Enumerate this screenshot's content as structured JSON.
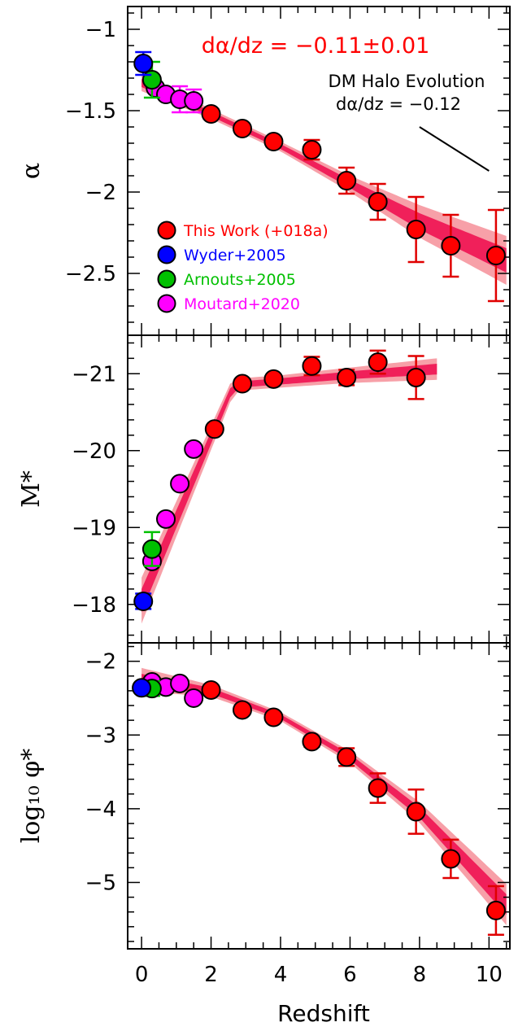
{
  "chart_data": {
    "type": "scatter",
    "xlabel": "Redshift",
    "xlim": [
      -0.4,
      10.6
    ],
    "x_ticks": [
      0,
      2,
      4,
      6,
      8,
      10
    ],
    "legend": {
      "position": "lower-left of top panel",
      "entries": [
        {
          "name": "This Work (+018a)",
          "color": "#ff0000"
        },
        {
          "name": "Wyder+2005",
          "color": "#0000ff"
        },
        {
          "name": "Arnouts+2005",
          "color": "#00c000"
        },
        {
          "name": "Moutard+2020",
          "color": "#ff00ff"
        }
      ]
    },
    "panels": [
      {
        "id": "alpha",
        "ylabel": "α",
        "ylim": [
          -2.88,
          -0.86
        ],
        "y_ticks": [
          -1,
          -1.5,
          -2,
          -2.5
        ],
        "y_tick_labels": [
          "−1",
          "−1.5",
          "−2",
          "−2.5"
        ],
        "annotation_fit": "dα/dz = −0.11±0.01",
        "annotation_halo_title": "DM Halo Evolution",
        "annotation_halo_slope": "dα/dz = −0.12",
        "halo_line": {
          "x": [
            8.0,
            10.0
          ],
          "y": [
            -1.6,
            -1.87
          ]
        },
        "band": {
          "x": [
            0.0,
            2.0,
            4.0,
            6.0,
            8.0,
            10.5
          ],
          "center": [
            -1.33,
            -1.52,
            -1.72,
            -1.95,
            -2.18,
            -2.42
          ],
          "outer_halfwidth": [
            0.05,
            0.03,
            0.03,
            0.05,
            0.1,
            0.15
          ],
          "inner_halfwidth": [
            0.025,
            0.015,
            0.015,
            0.025,
            0.05,
            0.075
          ]
        },
        "series": [
          {
            "name": "This Work (+018a)",
            "x": [
              2.0,
              2.9,
              3.8,
              4.9,
              5.9,
              6.8,
              7.9,
              8.9,
              10.2
            ],
            "y": [
              -1.52,
              -1.61,
              -1.69,
              -1.74,
              -1.93,
              -2.06,
              -2.23,
              -2.33,
              -2.39
            ],
            "err": [
              0.03,
              0.03,
              0.03,
              0.06,
              0.08,
              0.11,
              0.2,
              0.19,
              0.28
            ]
          },
          {
            "name": "Wyder+2005",
            "x": [
              0.05
            ],
            "y": [
              -1.21
            ],
            "err": [
              0.07
            ]
          },
          {
            "name": "Arnouts+2005",
            "x": [
              0.3
            ],
            "y": [
              -1.31
            ],
            "err": [
              0.11
            ]
          },
          {
            "name": "Moutard+2020",
            "x": [
              0.4,
              0.7,
              1.1,
              1.5
            ],
            "y": [
              -1.36,
              -1.4,
              -1.43,
              -1.44
            ],
            "err": [
              0.02,
              0.03,
              0.08,
              0.07
            ]
          }
        ]
      },
      {
        "id": "mstar",
        "ylabel": "M*",
        "ylim": [
          -17.5,
          -21.5
        ],
        "y_ticks": [
          -18,
          -19,
          -20,
          -21
        ],
        "y_tick_labels": [
          "−18",
          "−19",
          "−20",
          "−21"
        ],
        "band": {
          "x": [
            0.0,
            2.55,
            2.8,
            4.0,
            6.0,
            8.5
          ],
          "center": [
            -18.05,
            -20.75,
            -20.86,
            -20.9,
            -20.98,
            -21.06
          ],
          "outer_halfwidth": [
            0.3,
            0.12,
            0.08,
            0.08,
            0.1,
            0.14
          ],
          "inner_halfwidth": [
            0.15,
            0.06,
            0.04,
            0.04,
            0.05,
            0.07
          ]
        },
        "series": [
          {
            "name": "This Work (+018a)",
            "x": [
              2.1,
              2.9,
              3.8,
              4.9,
              5.9,
              6.8,
              7.9
            ],
            "y": [
              -20.28,
              -20.87,
              -20.93,
              -21.1,
              -20.95,
              -21.15,
              -20.95
            ],
            "err": [
              0.05,
              0.06,
              0.06,
              0.12,
              0.1,
              0.15,
              0.28
            ]
          },
          {
            "name": "Wyder+2005",
            "x": [
              0.05
            ],
            "y": [
              -18.04
            ],
            "err": [
              0.1
            ]
          },
          {
            "name": "Arnouts+2005",
            "x": [
              0.3
            ],
            "y": [
              -18.72
            ],
            "err": [
              0.22
            ]
          },
          {
            "name": "Moutard+2020",
            "x": [
              0.3,
              0.7,
              1.1,
              1.5
            ],
            "y": [
              -18.56,
              -19.11,
              -19.57,
              -20.02
            ],
            "err": [
              0.05,
              0.05,
              0.05,
              0.05
            ]
          }
        ]
      },
      {
        "id": "phistar",
        "ylabel": "log₁₀ φ*",
        "ylim": [
          -5.9,
          -1.75
        ],
        "y_ticks": [
          -2,
          -3,
          -4,
          -5
        ],
        "y_tick_labels": [
          "−2",
          "−3",
          "−4",
          "−5"
        ],
        "band": {
          "x": [
            0.0,
            2.0,
            4.0,
            6.0,
            8.0,
            10.5
          ],
          "center": [
            -2.25,
            -2.4,
            -2.75,
            -3.3,
            -4.05,
            -5.3
          ],
          "outer_halfwidth": [
            0.16,
            0.08,
            0.06,
            0.08,
            0.14,
            0.28
          ],
          "inner_halfwidth": [
            0.08,
            0.04,
            0.03,
            0.04,
            0.07,
            0.14
          ]
        },
        "series": [
          {
            "name": "This Work (+018a)",
            "x": [
              2.0,
              2.9,
              3.8,
              4.9,
              5.9,
              6.8,
              7.9,
              8.9,
              10.2
            ],
            "y": [
              -2.39,
              -2.66,
              -2.76,
              -3.09,
              -3.3,
              -3.72,
              -4.04,
              -4.68,
              -5.38
            ],
            "err": [
              0.03,
              0.05,
              0.05,
              0.07,
              0.12,
              0.2,
              0.3,
              0.26,
              0.33
            ]
          },
          {
            "name": "Wyder+2005",
            "x": [
              0.0
            ],
            "y": [
              -2.36
            ],
            "err": [
              0.06
            ]
          },
          {
            "name": "Arnouts+2005",
            "x": [
              0.3
            ],
            "y": [
              -2.37
            ],
            "err": [
              0.1
            ]
          },
          {
            "name": "Moutard+2020",
            "x": [
              0.3,
              0.7,
              1.1,
              1.5
            ],
            "y": [
              -2.28,
              -2.35,
              -2.3,
              -2.5
            ],
            "err": [
              0.03,
              0.03,
              0.03,
              0.03
            ]
          }
        ]
      }
    ]
  }
}
